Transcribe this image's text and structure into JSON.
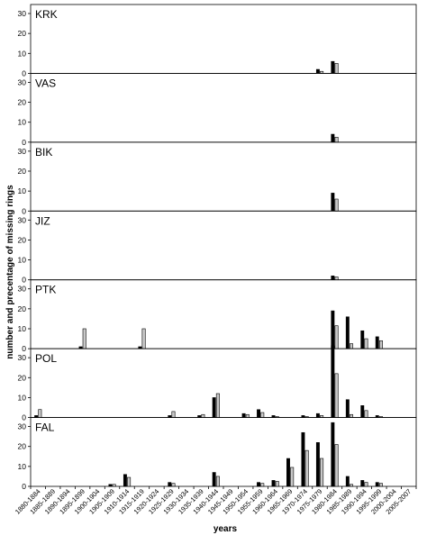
{
  "chart_data": {
    "type": "bar",
    "xlabel": "years",
    "ylabel": "number and precentage of missing rings",
    "categories": [
      "1880-1884",
      "1885-1889",
      "1890-1894",
      "1895-1899",
      "1900-1904",
      "1905-1909",
      "1910-1914",
      "1915-1919",
      "1920-1924",
      "1925-1929",
      "1930-1934",
      "1935-1939",
      "1940-1944",
      "1945-1949",
      "1950-1954",
      "1955-1959",
      "1960-1964",
      "1965-1969",
      "1970-1974",
      "1975-1979",
      "1980-1984",
      "1985-1989",
      "1990-1994",
      "1995-1999",
      "2000-2004",
      "2005-2007"
    ],
    "ylim": [
      0,
      30
    ],
    "yticks": [
      "0",
      "10",
      "20",
      "30"
    ],
    "series_style": {
      "number": "#000000",
      "percentage": "#c8c8c8"
    },
    "panels": [
      {
        "label": "KRK",
        "number": [
          0,
          0,
          0,
          0,
          0,
          0,
          0,
          0,
          0,
          0,
          0,
          0,
          0,
          0,
          0,
          0,
          0,
          0,
          0,
          2,
          6,
          0,
          0,
          0,
          0,
          0
        ],
        "percentage": [
          0,
          0,
          0,
          0,
          0,
          0,
          0,
          0,
          0,
          0,
          0,
          0,
          0,
          0,
          0,
          0,
          0,
          0,
          0,
          1,
          5,
          0,
          0,
          0,
          0,
          0
        ]
      },
      {
        "label": "VAS",
        "number": [
          0,
          0,
          0,
          0,
          0,
          0,
          0,
          0,
          0,
          0,
          0,
          0,
          0,
          0,
          0,
          0,
          0,
          0,
          0,
          0,
          4,
          0,
          0,
          0,
          0,
          0
        ],
        "percentage": [
          0,
          0,
          0,
          0,
          0,
          0,
          0,
          0,
          0,
          0,
          0,
          0,
          0,
          0,
          0,
          0,
          0,
          0,
          0,
          0,
          2.5,
          0,
          0,
          0,
          0,
          0
        ]
      },
      {
        "label": "BIK",
        "number": [
          0,
          0,
          0,
          0,
          0,
          0,
          0,
          0,
          0,
          0,
          0,
          0,
          0,
          0,
          0,
          0,
          0,
          0,
          0,
          0,
          9,
          0,
          0,
          0,
          0,
          0
        ],
        "percentage": [
          0,
          0,
          0,
          0,
          0,
          0,
          0,
          0,
          0,
          0,
          0,
          0,
          0,
          0,
          0,
          0,
          0,
          0,
          0,
          0,
          6,
          0,
          0,
          0,
          0,
          0
        ]
      },
      {
        "label": "JIZ",
        "number": [
          0,
          0,
          0,
          0,
          0,
          0,
          0,
          0,
          0,
          0,
          0,
          0,
          0,
          0,
          0,
          0,
          0,
          0,
          0,
          0,
          2,
          0,
          0,
          0,
          0,
          0
        ],
        "percentage": [
          0,
          0,
          0,
          0,
          0,
          0,
          0,
          0,
          0,
          0,
          0,
          0,
          0,
          0,
          0,
          0,
          0,
          0,
          0,
          0,
          1.5,
          0,
          0,
          0,
          0,
          0
        ]
      },
      {
        "label": "PTK",
        "number": [
          0,
          0,
          0,
          1,
          0,
          0,
          0,
          1,
          0,
          0,
          0,
          0,
          0,
          0,
          0,
          0,
          0,
          0,
          0,
          0,
          19,
          16,
          9,
          6,
          0,
          0
        ],
        "percentage": [
          0,
          0,
          0,
          10,
          0,
          0,
          0,
          10,
          0,
          0,
          0,
          0,
          0,
          0,
          0,
          0,
          0,
          0,
          0,
          0,
          11.5,
          2.5,
          5,
          4,
          0,
          0
        ]
      },
      {
        "label": "POL",
        "number": [
          1,
          0,
          0,
          0,
          0,
          0,
          0,
          0,
          0,
          1,
          0,
          1,
          10,
          0,
          2,
          4,
          1,
          0,
          1,
          2,
          36,
          9,
          6,
          1,
          0,
          0
        ],
        "percentage": [
          4,
          0,
          0,
          0,
          0,
          0,
          0,
          0,
          0,
          3,
          0,
          1.5,
          12,
          0,
          1.5,
          2.5,
          0.5,
          0,
          0.5,
          1,
          22,
          1.5,
          3.5,
          0.5,
          0,
          0
        ]
      },
      {
        "label": "FAL",
        "number": [
          0,
          0,
          0,
          0,
          0,
          1,
          6,
          0,
          0,
          2,
          0,
          0,
          7,
          0,
          0,
          2,
          3,
          14,
          27,
          22,
          32,
          5,
          3,
          2,
          0,
          0
        ],
        "percentage": [
          0,
          0,
          0,
          0,
          0,
          1,
          4.5,
          0,
          0,
          1.5,
          0,
          0,
          5,
          0,
          0,
          1.5,
          2.5,
          9.5,
          18,
          14,
          21,
          1,
          2,
          1.5,
          0,
          0
        ]
      }
    ]
  }
}
